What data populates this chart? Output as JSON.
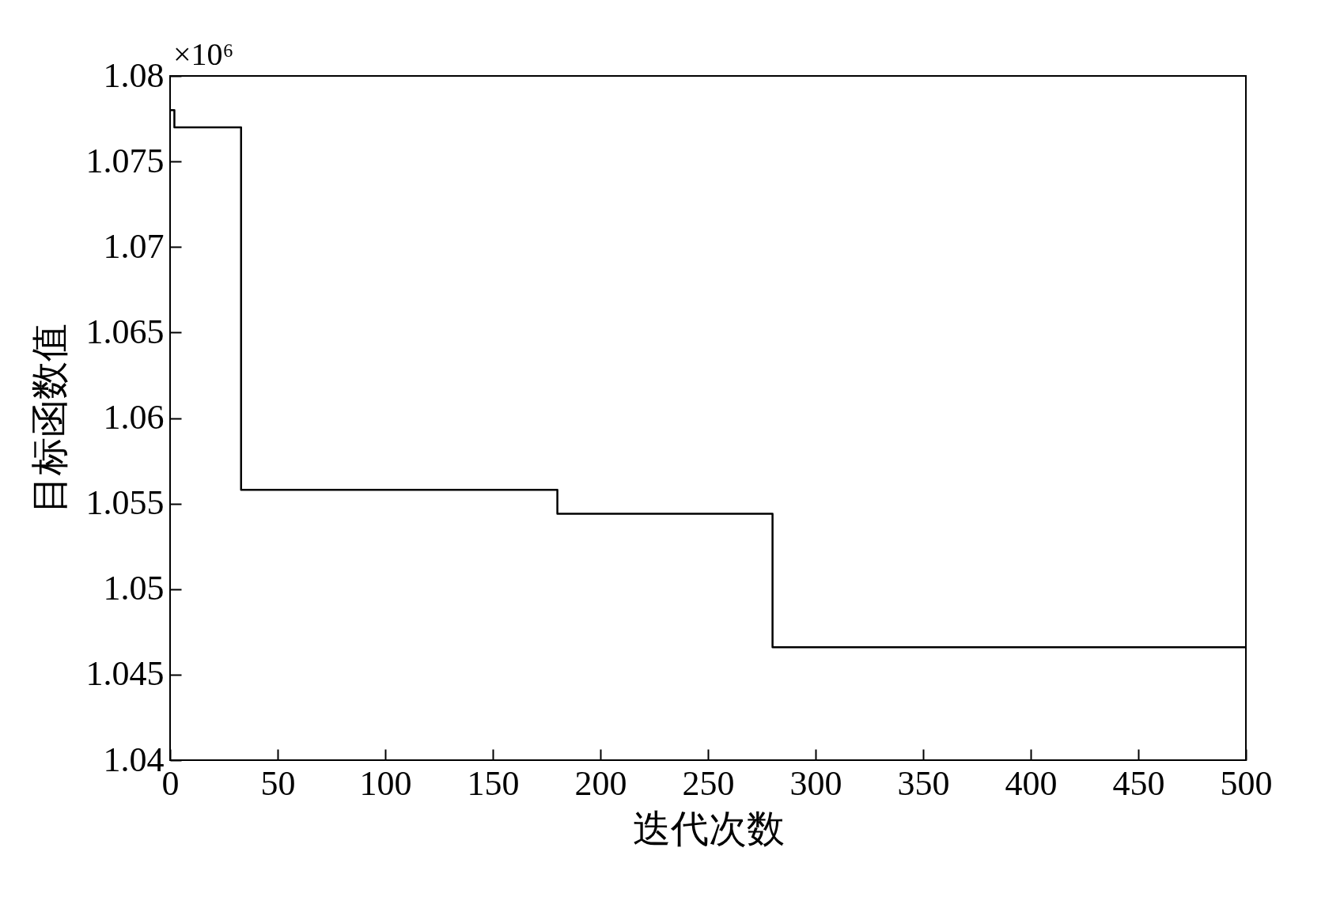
{
  "chart_data": {
    "type": "step",
    "xlabel": "迭代次数",
    "ylabel": "目标函数值",
    "annotations": [
      "×10⁶"
    ],
    "x": [
      0,
      2,
      33,
      180,
      280,
      500
    ],
    "series": [
      {
        "color": "#000000",
        "values": [
          1.078,
          1.077,
          1.0558,
          1.0544,
          1.0466,
          1.0466
        ]
      }
    ],
    "xlim": [
      0,
      500
    ],
    "xticks": [
      0,
      50,
      100,
      150,
      200,
      250,
      300,
      350,
      400,
      450,
      500
    ],
    "ylim": [
      1.04,
      1.08
    ],
    "yticks": [
      1.04,
      1.045,
      1.05,
      1.055,
      1.06,
      1.065,
      1.07,
      1.075,
      1.08
    ],
    "grid": false,
    "legend": false
  }
}
